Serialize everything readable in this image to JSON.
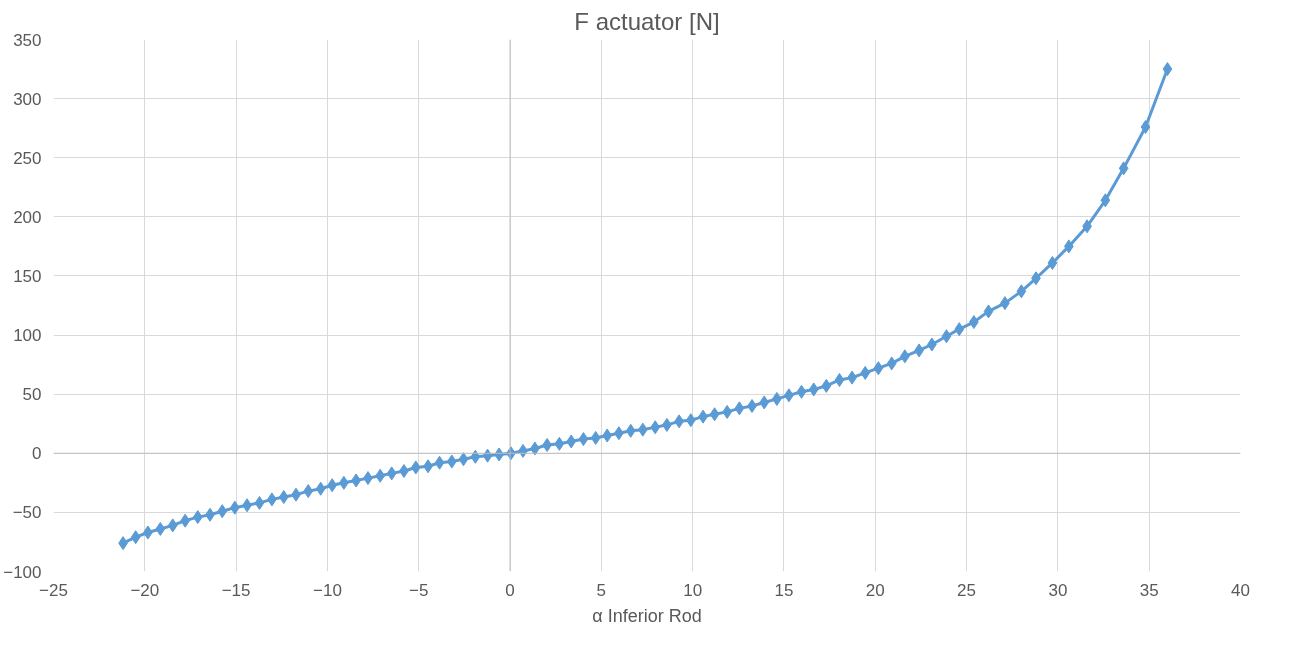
{
  "chart_data": {
    "type": "line",
    "title": "F actuator [N]",
    "xlabel": "α Inferior Rod",
    "xlim": [
      -25,
      40
    ],
    "ylim": [
      -100,
      350
    ],
    "xticks": [
      -25,
      -20,
      -15,
      -10,
      -5,
      0,
      5,
      10,
      15,
      20,
      25,
      30,
      35,
      40
    ],
    "yticks": [
      -100,
      -50,
      0,
      50,
      100,
      150,
      200,
      250,
      300,
      350
    ],
    "grid": true,
    "marker": "diamond",
    "line_style": "solid",
    "series": [
      {
        "color": "#5b9bd5",
        "x": [
          -21.19,
          -20.5,
          -19.83,
          -19.15,
          -18.47,
          -17.79,
          -17.1,
          -16.43,
          -15.76,
          -15.07,
          -14.4,
          -13.72,
          -13.04,
          -12.39,
          -11.72,
          -11.05,
          -10.37,
          -9.74,
          -9.1,
          -8.43,
          -7.78,
          -7.11,
          -6.48,
          -5.81,
          -5.16,
          -4.49,
          -3.86,
          -3.19,
          -2.55,
          -1.9,
          -1.23,
          -0.6,
          0.05,
          0.71,
          1.36,
          2.03,
          2.7,
          3.35,
          4.02,
          4.69,
          5.32,
          5.96,
          6.61,
          7.27,
          7.95,
          8.59,
          9.26,
          9.9,
          10.57,
          11.2,
          11.89,
          12.56,
          13.25,
          13.92,
          14.61,
          15.27,
          15.96,
          16.63,
          17.32,
          18.04,
          18.73,
          19.45,
          20.17,
          20.9,
          21.62,
          22.4,
          23.1,
          23.9,
          24.6,
          25.4,
          26.2,
          27.1,
          28.0,
          28.8,
          29.7,
          30.6,
          31.6,
          32.6,
          33.6,
          34.8,
          36.0
        ],
        "values": [
          -76,
          -71,
          -67,
          -64,
          -61,
          -57,
          -54,
          -52,
          -49,
          -46,
          -44,
          -42,
          -39,
          -37,
          -35,
          -32,
          -30,
          -27,
          -25,
          -23,
          -21,
          -19,
          -17,
          -15,
          -12,
          -11,
          -8,
          -7,
          -5,
          -3,
          -2,
          -1,
          0,
          2,
          4,
          7,
          8,
          10,
          12,
          13,
          15,
          17,
          19,
          20,
          22,
          24,
          27,
          28,
          31,
          33,
          35,
          38,
          40,
          43,
          46,
          49,
          52,
          54,
          57,
          62,
          64,
          68,
          72,
          76,
          82,
          87,
          92,
          99,
          105,
          111,
          120,
          127,
          137,
          148,
          161,
          175,
          192,
          214,
          241,
          276,
          325
        ]
      }
    ]
  }
}
